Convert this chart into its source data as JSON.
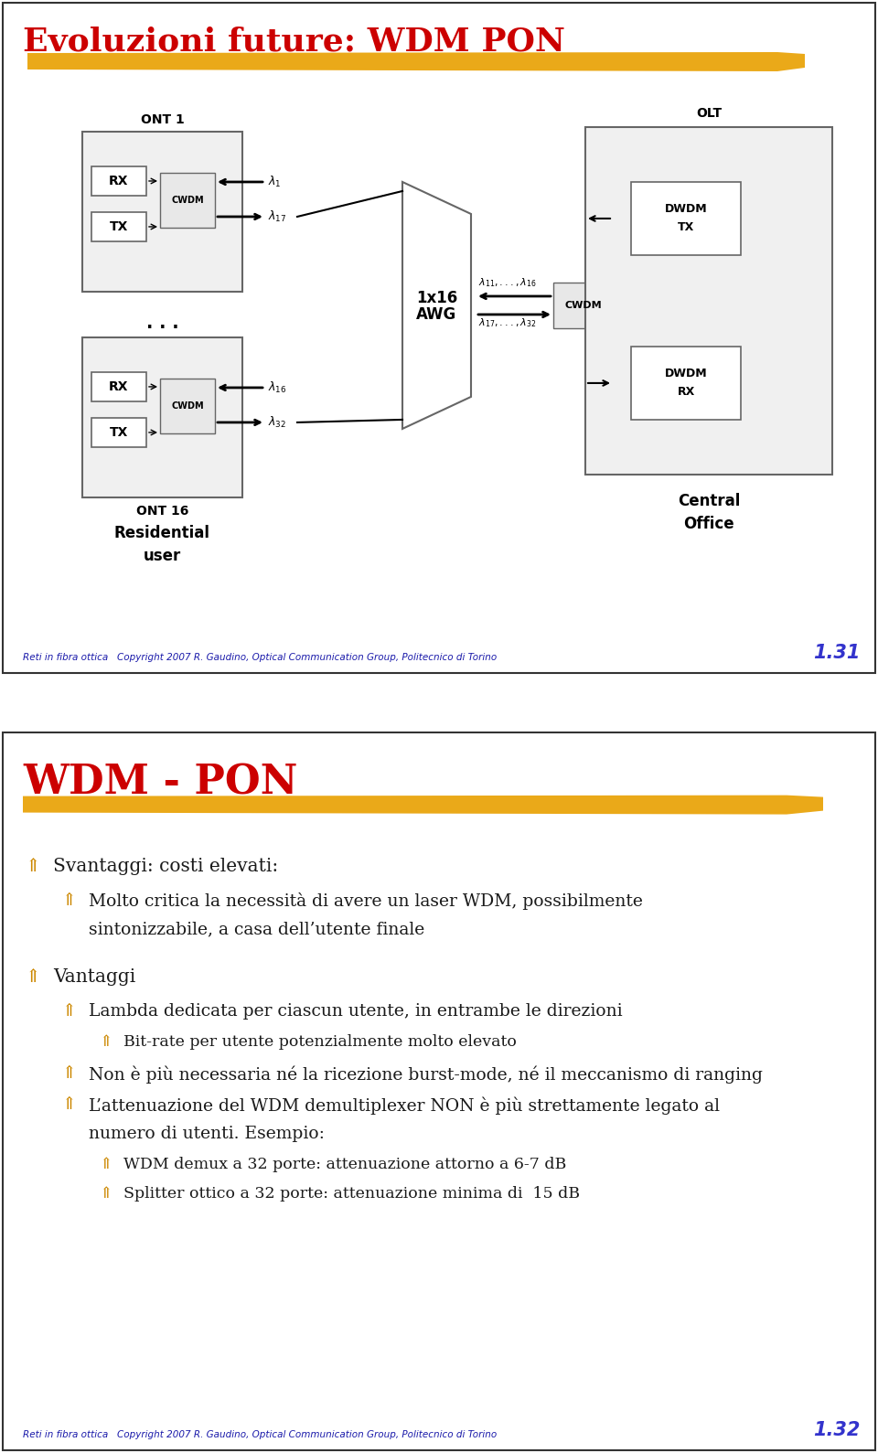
{
  "title1": "Evoluzioni future: WDM PON",
  "title1_color": "#cc0000",
  "title2": "WDM - PON",
  "title2_color": "#cc0000",
  "footer_text": "Reti in fibra ottica   Copyright 2007 R. Gaudino, Optical Communication Group, Politecnico di Torino",
  "footer_color": "#1a1aaa",
  "slide1_number": "1.31",
  "slide2_number": "1.32",
  "number_color": "#3333cc",
  "background_color": "#ffffff",
  "border_color": "#333333",
  "highlight_color": "#e8a000",
  "text_color": "#222222",
  "bullet_color": "#cc8800",
  "box_color": "#555555",
  "diagram_box_color": "#666666",
  "slide_gap_color": "#dddddd",
  "ont1_label": "ONT 1",
  "ont16_label": "ONT 16",
  "olt_label": "OLT",
  "awg_label1": "1x16",
  "awg_label2": "AWG",
  "cwdm_label": "CWDM",
  "dwdm_tx_label1": "DWDM",
  "dwdm_tx_label2": "TX",
  "dwdm_rx_label1": "DWDM",
  "dwdm_rx_label2": "RX",
  "residential_label": "Residential\nuser",
  "central_label": "Central\nOffice"
}
